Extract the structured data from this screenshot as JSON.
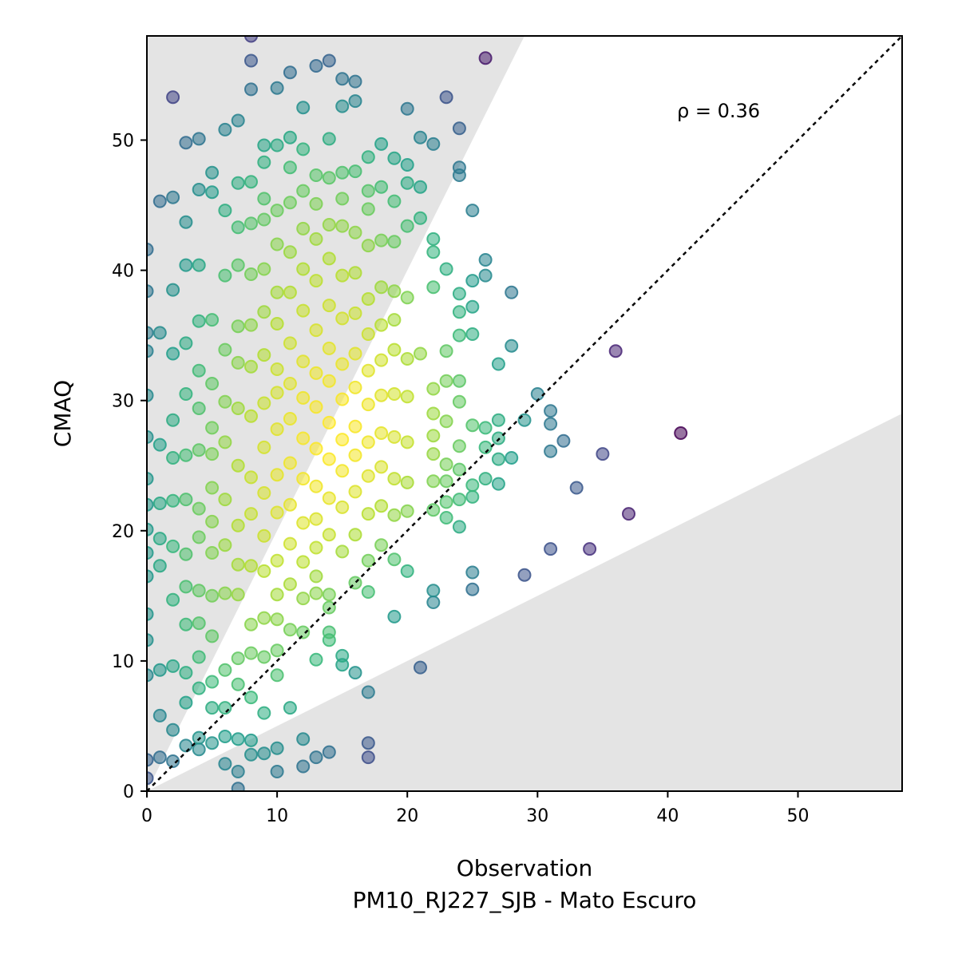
{
  "chart_data": {
    "type": "scatter",
    "xlabel": "Observation",
    "xlabel_line2": "PM10_RJ227_SJB - Mato Escuro",
    "ylabel": "CMAQ",
    "annotation": "ρ = 0.36",
    "xlim": [
      0,
      58
    ],
    "ylim": [
      0,
      58
    ],
    "xticks": [
      0,
      10,
      20,
      30,
      40,
      50
    ],
    "yticks": [
      0,
      10,
      20,
      30,
      40,
      50
    ],
    "grid": false,
    "identity_line": true,
    "shaded_band": "factor-of-2 region outside (y between x/2 and 2x)",
    "colormap": "viridis (point density)",
    "colors": {
      "shade": "#e4e4e4",
      "low_density": "#440154",
      "mid_density": "#21918c",
      "high_density": "#fde725"
    },
    "points": [
      [
        0,
        41.6
      ],
      [
        0,
        38.4
      ],
      [
        0,
        35.2
      ],
      [
        0,
        33.8
      ],
      [
        0,
        30.4
      ],
      [
        0,
        27.2
      ],
      [
        0,
        24.0
      ],
      [
        0,
        22.0
      ],
      [
        0,
        20.1
      ],
      [
        0,
        18.3
      ],
      [
        0,
        16.5
      ],
      [
        0,
        13.6
      ],
      [
        0,
        11.6
      ],
      [
        0,
        8.9
      ],
      [
        0,
        2.4
      ],
      [
        0,
        1.0
      ],
      [
        1,
        45.3
      ],
      [
        1,
        35.2
      ],
      [
        1,
        26.6
      ],
      [
        1,
        22.1
      ],
      [
        1,
        19.4
      ],
      [
        1,
        17.3
      ],
      [
        1,
        9.3
      ],
      [
        1,
        5.8
      ],
      [
        1,
        2.6
      ],
      [
        2,
        53.3
      ],
      [
        2,
        45.6
      ],
      [
        2,
        38.5
      ],
      [
        2,
        33.6
      ],
      [
        2,
        28.5
      ],
      [
        2,
        25.6
      ],
      [
        2,
        22.3
      ],
      [
        2,
        18.8
      ],
      [
        2,
        14.7
      ],
      [
        2,
        9.6
      ],
      [
        2,
        4.7
      ],
      [
        2,
        2.3
      ],
      [
        3,
        49.8
      ],
      [
        3,
        43.7
      ],
      [
        3,
        40.4
      ],
      [
        3,
        34.4
      ],
      [
        3,
        30.5
      ],
      [
        3,
        25.8
      ],
      [
        3,
        22.4
      ],
      [
        3,
        18.2
      ],
      [
        3,
        15.7
      ],
      [
        3,
        12.8
      ],
      [
        3,
        9.1
      ],
      [
        3,
        6.8
      ],
      [
        3,
        3.5
      ],
      [
        4,
        50.1
      ],
      [
        4,
        46.2
      ],
      [
        4,
        40.4
      ],
      [
        4,
        36.1
      ],
      [
        4,
        32.3
      ],
      [
        4,
        29.4
      ],
      [
        4,
        26.2
      ],
      [
        4,
        21.7
      ],
      [
        4,
        19.5
      ],
      [
        4,
        15.4
      ],
      [
        4,
        12.9
      ],
      [
        4,
        10.3
      ],
      [
        4,
        7.9
      ],
      [
        4,
        4.1
      ],
      [
        4,
        3.2
      ],
      [
        5,
        47.5
      ],
      [
        5,
        46.0
      ],
      [
        5,
        36.2
      ],
      [
        5,
        31.3
      ],
      [
        5,
        27.9
      ],
      [
        5,
        25.9
      ],
      [
        5,
        23.3
      ],
      [
        5,
        20.7
      ],
      [
        5,
        18.3
      ],
      [
        5,
        15.0
      ],
      [
        5,
        11.9
      ],
      [
        5,
        8.4
      ],
      [
        5,
        6.4
      ],
      [
        5,
        3.7
      ],
      [
        6,
        50.8
      ],
      [
        6,
        44.6
      ],
      [
        6,
        39.6
      ],
      [
        6,
        33.9
      ],
      [
        6,
        29.9
      ],
      [
        6,
        26.8
      ],
      [
        6,
        22.4
      ],
      [
        6,
        18.9
      ],
      [
        6,
        15.2
      ],
      [
        6,
        9.3
      ],
      [
        6,
        6.4
      ],
      [
        6,
        4.2
      ],
      [
        6,
        2.1
      ],
      [
        7,
        51.5
      ],
      [
        7,
        46.7
      ],
      [
        7,
        43.3
      ],
      [
        7,
        40.4
      ],
      [
        7,
        35.7
      ],
      [
        7,
        32.9
      ],
      [
        7,
        29.4
      ],
      [
        7,
        25.0
      ],
      [
        7,
        20.4
      ],
      [
        7,
        17.4
      ],
      [
        7,
        15.1
      ],
      [
        7,
        10.2
      ],
      [
        7,
        8.2
      ],
      [
        7,
        4.0
      ],
      [
        7,
        1.5
      ],
      [
        7,
        0.2
      ],
      [
        8,
        58.0
      ],
      [
        8,
        56.1
      ],
      [
        8,
        53.9
      ],
      [
        8,
        46.8
      ],
      [
        8,
        43.6
      ],
      [
        8,
        39.7
      ],
      [
        8,
        35.8
      ],
      [
        8,
        32.6
      ],
      [
        8,
        28.8
      ],
      [
        8,
        24.1
      ],
      [
        8,
        21.3
      ],
      [
        8,
        17.3
      ],
      [
        8,
        12.8
      ],
      [
        8,
        10.6
      ],
      [
        8,
        7.2
      ],
      [
        8,
        3.9
      ],
      [
        8,
        2.8
      ],
      [
        9,
        49.6
      ],
      [
        9,
        48.3
      ],
      [
        9,
        45.5
      ],
      [
        9,
        43.9
      ],
      [
        9,
        40.1
      ],
      [
        9,
        36.8
      ],
      [
        9,
        33.5
      ],
      [
        9,
        29.8
      ],
      [
        9,
        26.4
      ],
      [
        9,
        22.9
      ],
      [
        9,
        19.6
      ],
      [
        9,
        16.9
      ],
      [
        9,
        13.3
      ],
      [
        9,
        10.3
      ],
      [
        9,
        6.0
      ],
      [
        9,
        2.9
      ],
      [
        10,
        54.0
      ],
      [
        10,
        49.6
      ],
      [
        10,
        44.6
      ],
      [
        10,
        42.0
      ],
      [
        10,
        38.3
      ],
      [
        10,
        35.9
      ],
      [
        10,
        32.4
      ],
      [
        10,
        30.6
      ],
      [
        10,
        27.8
      ],
      [
        10,
        24.3
      ],
      [
        10,
        21.4
      ],
      [
        10,
        17.7
      ],
      [
        10,
        15.1
      ],
      [
        10,
        13.2
      ],
      [
        10,
        10.8
      ],
      [
        10,
        8.9
      ],
      [
        10,
        3.3
      ],
      [
        10,
        1.5
      ],
      [
        11,
        55.2
      ],
      [
        11,
        50.2
      ],
      [
        11,
        47.9
      ],
      [
        11,
        45.2
      ],
      [
        11,
        41.4
      ],
      [
        11,
        38.3
      ],
      [
        11,
        34.4
      ],
      [
        11,
        31.3
      ],
      [
        11,
        28.6
      ],
      [
        11,
        25.2
      ],
      [
        11,
        22.0
      ],
      [
        11,
        19.0
      ],
      [
        11,
        15.9
      ],
      [
        11,
        12.4
      ],
      [
        11,
        6.4
      ],
      [
        12,
        52.5
      ],
      [
        12,
        49.3
      ],
      [
        12,
        46.1
      ],
      [
        12,
        43.2
      ],
      [
        12,
        40.1
      ],
      [
        12,
        36.9
      ],
      [
        12,
        33.0
      ],
      [
        12,
        30.2
      ],
      [
        12,
        27.1
      ],
      [
        12,
        24.0
      ],
      [
        12,
        20.6
      ],
      [
        12,
        17.6
      ],
      [
        12,
        14.8
      ],
      [
        12,
        12.2
      ],
      [
        12,
        4.0
      ],
      [
        12,
        1.9
      ],
      [
        13,
        55.7
      ],
      [
        13,
        47.3
      ],
      [
        13,
        45.1
      ],
      [
        13,
        42.4
      ],
      [
        13,
        39.2
      ],
      [
        13,
        35.4
      ],
      [
        13,
        32.1
      ],
      [
        13,
        29.5
      ],
      [
        13,
        26.3
      ],
      [
        13,
        23.4
      ],
      [
        13,
        20.9
      ],
      [
        13,
        18.7
      ],
      [
        13,
        16.5
      ],
      [
        13,
        15.2
      ],
      [
        13,
        10.1
      ],
      [
        13,
        2.6
      ],
      [
        14,
        56.1
      ],
      [
        14,
        50.1
      ],
      [
        14,
        47.1
      ],
      [
        14,
        43.5
      ],
      [
        14,
        40.9
      ],
      [
        14,
        37.3
      ],
      [
        14,
        34.0
      ],
      [
        14,
        31.5
      ],
      [
        14,
        28.3
      ],
      [
        14,
        25.5
      ],
      [
        14,
        22.5
      ],
      [
        14,
        19.7
      ],
      [
        14,
        15.1
      ],
      [
        14,
        14.1
      ],
      [
        14,
        12.2
      ],
      [
        14,
        11.6
      ],
      [
        14,
        3.0
      ],
      [
        15,
        54.7
      ],
      [
        15,
        52.6
      ],
      [
        15,
        47.5
      ],
      [
        15,
        45.5
      ],
      [
        15,
        43.4
      ],
      [
        15,
        39.6
      ],
      [
        15,
        36.3
      ],
      [
        15,
        32.8
      ],
      [
        15,
        30.1
      ],
      [
        15,
        27.0
      ],
      [
        15,
        24.6
      ],
      [
        15,
        21.8
      ],
      [
        15,
        18.4
      ],
      [
        15,
        10.4
      ],
      [
        15,
        9.7
      ],
      [
        16,
        54.5
      ],
      [
        16,
        53.0
      ],
      [
        16,
        47.6
      ],
      [
        16,
        42.9
      ],
      [
        16,
        39.8
      ],
      [
        16,
        36.7
      ],
      [
        16,
        33.6
      ],
      [
        16,
        31.0
      ],
      [
        16,
        28.0
      ],
      [
        16,
        25.8
      ],
      [
        16,
        23.0
      ],
      [
        16,
        19.7
      ],
      [
        16,
        16.0
      ],
      [
        16,
        9.1
      ],
      [
        17,
        48.7
      ],
      [
        17,
        46.1
      ],
      [
        17,
        44.7
      ],
      [
        17,
        41.9
      ],
      [
        17,
        37.8
      ],
      [
        17,
        35.1
      ],
      [
        17,
        32.3
      ],
      [
        17,
        29.7
      ],
      [
        17,
        26.8
      ],
      [
        17,
        24.2
      ],
      [
        17,
        21.3
      ],
      [
        17,
        17.7
      ],
      [
        17,
        15.3
      ],
      [
        17,
        7.6
      ],
      [
        17,
        3.7
      ],
      [
        17,
        2.6
      ],
      [
        18,
        49.7
      ],
      [
        18,
        46.4
      ],
      [
        18,
        42.3
      ],
      [
        18,
        38.7
      ],
      [
        18,
        35.8
      ],
      [
        18,
        33.1
      ],
      [
        18,
        30.4
      ],
      [
        18,
        27.5
      ],
      [
        18,
        24.9
      ],
      [
        18,
        21.9
      ],
      [
        18,
        18.9
      ],
      [
        19,
        48.6
      ],
      [
        19,
        45.3
      ],
      [
        19,
        42.2
      ],
      [
        19,
        38.4
      ],
      [
        19,
        36.2
      ],
      [
        19,
        33.9
      ],
      [
        19,
        30.5
      ],
      [
        19,
        27.2
      ],
      [
        19,
        24.0
      ],
      [
        19,
        21.2
      ],
      [
        19,
        17.8
      ],
      [
        19,
        13.4
      ],
      [
        20,
        52.4
      ],
      [
        20,
        48.1
      ],
      [
        20,
        46.7
      ],
      [
        20,
        43.4
      ],
      [
        20,
        37.9
      ],
      [
        20,
        33.2
      ],
      [
        20,
        30.3
      ],
      [
        20,
        26.8
      ],
      [
        20,
        23.7
      ],
      [
        20,
        21.5
      ],
      [
        20,
        16.9
      ],
      [
        21,
        50.2
      ],
      [
        21,
        46.4
      ],
      [
        21,
        44.0
      ],
      [
        21,
        33.6
      ],
      [
        21,
        9.5
      ],
      [
        22,
        49.7
      ],
      [
        22,
        42.4
      ],
      [
        22,
        41.4
      ],
      [
        22,
        38.7
      ],
      [
        22,
        30.9
      ],
      [
        22,
        29.0
      ],
      [
        22,
        27.3
      ],
      [
        22,
        25.9
      ],
      [
        22,
        23.8
      ],
      [
        22,
        21.6
      ],
      [
        22,
        15.4
      ],
      [
        22,
        14.5
      ],
      [
        23,
        53.3
      ],
      [
        23,
        40.1
      ],
      [
        23,
        33.8
      ],
      [
        23,
        31.5
      ],
      [
        23,
        28.4
      ],
      [
        23,
        25.1
      ],
      [
        23,
        23.8
      ],
      [
        23,
        22.2
      ],
      [
        23,
        21.0
      ],
      [
        24,
        50.9
      ],
      [
        24,
        47.9
      ],
      [
        24,
        47.3
      ],
      [
        24,
        38.2
      ],
      [
        24,
        36.8
      ],
      [
        24,
        35.0
      ],
      [
        24,
        31.5
      ],
      [
        24,
        29.9
      ],
      [
        24,
        26.5
      ],
      [
        24,
        24.7
      ],
      [
        24,
        22.4
      ],
      [
        24,
        20.3
      ],
      [
        25,
        44.6
      ],
      [
        25,
        39.2
      ],
      [
        25,
        37.2
      ],
      [
        25,
        35.1
      ],
      [
        25,
        28.1
      ],
      [
        25,
        23.5
      ],
      [
        25,
        22.6
      ],
      [
        25,
        16.8
      ],
      [
        25,
        15.5
      ],
      [
        26,
        56.3
      ],
      [
        26,
        40.8
      ],
      [
        26,
        39.6
      ],
      [
        26,
        27.9
      ],
      [
        26,
        26.4
      ],
      [
        26,
        24.0
      ],
      [
        27,
        32.8
      ],
      [
        27,
        28.5
      ],
      [
        27,
        27.1
      ],
      [
        27,
        25.5
      ],
      [
        27,
        23.6
      ],
      [
        28,
        38.3
      ],
      [
        28,
        34.2
      ],
      [
        28,
        25.6
      ],
      [
        29,
        28.5
      ],
      [
        29,
        16.6
      ],
      [
        30,
        30.5
      ],
      [
        31,
        29.2
      ],
      [
        31,
        28.2
      ],
      [
        31,
        26.1
      ],
      [
        31,
        18.6
      ],
      [
        32,
        26.9
      ],
      [
        33,
        23.3
      ],
      [
        34,
        18.6
      ],
      [
        35,
        25.9
      ],
      [
        36,
        33.8
      ],
      [
        37,
        21.3
      ],
      [
        41,
        27.5
      ]
    ]
  }
}
